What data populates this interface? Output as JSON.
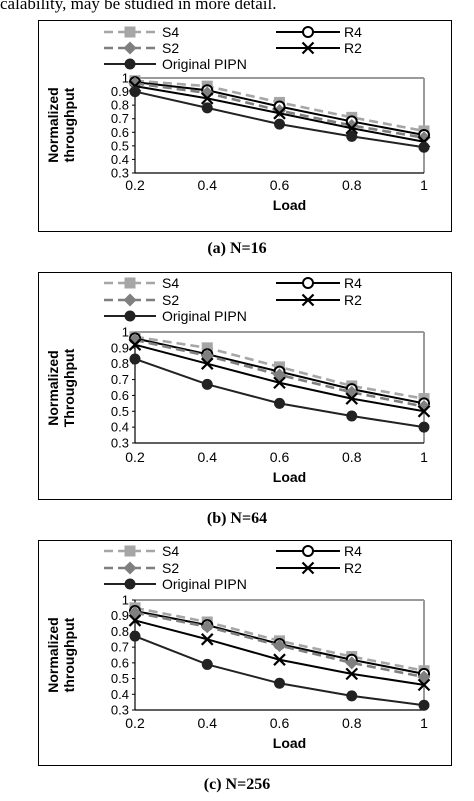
{
  "page": {
    "top_text": "calability, may be studied in more detail."
  },
  "chart_data": [
    {
      "type": "line",
      "caption": "(a) N=16",
      "title": "",
      "xlabel": "Load",
      "ylabel": "Normalized throughput",
      "x": [
        0.2,
        0.4,
        0.6,
        0.8,
        1
      ],
      "x_ticks": [
        "0.2",
        "0.4",
        "0.6",
        "0.8",
        "1"
      ],
      "ylim": [
        0.3,
        1
      ],
      "y_ticks": [
        "1",
        "0.9",
        "0.8",
        "0.7",
        "0.6",
        "0.5",
        "0.4",
        "0.3"
      ],
      "grid": false,
      "legend_position": "top",
      "series": [
        {
          "name": "S4",
          "marker": "square",
          "dashed": true,
          "color": "#a6a6a6",
          "values": [
            0.98,
            0.94,
            0.82,
            0.71,
            0.61
          ]
        },
        {
          "name": "R4",
          "marker": "circle-open",
          "dashed": false,
          "color": "#000000",
          "values": [
            0.97,
            0.91,
            0.79,
            0.68,
            0.58
          ]
        },
        {
          "name": "S2",
          "marker": "diamond",
          "dashed": true,
          "color": "#7f7f7f",
          "values": [
            0.96,
            0.89,
            0.76,
            0.65,
            0.56
          ]
        },
        {
          "name": "R2",
          "marker": "x",
          "dashed": false,
          "color": "#000000",
          "values": [
            0.94,
            0.85,
            0.74,
            0.63,
            0.53
          ]
        },
        {
          "name": "Original PIPN",
          "marker": "circle-filled",
          "dashed": false,
          "color": "#222222",
          "values": [
            0.9,
            0.78,
            0.66,
            0.57,
            0.49
          ]
        }
      ]
    },
    {
      "type": "line",
      "caption": "(b) N=64",
      "title": "",
      "xlabel": "Load",
      "ylabel": "Normalized Throughput",
      "x": [
        0.2,
        0.4,
        0.6,
        0.8,
        1
      ],
      "x_ticks": [
        "0.2",
        "0.4",
        "0.6",
        "0.8",
        "1"
      ],
      "ylim": [
        0.3,
        1
      ],
      "y_ticks": [
        "1",
        "0.9",
        "0.8",
        "0.7",
        "0.6",
        "0.5",
        "0.4",
        "0.3"
      ],
      "grid": false,
      "legend_position": "top",
      "series": [
        {
          "name": "S4",
          "marker": "square",
          "dashed": true,
          "color": "#a6a6a6",
          "values": [
            0.97,
            0.9,
            0.78,
            0.66,
            0.58
          ]
        },
        {
          "name": "R4",
          "marker": "circle-open",
          "dashed": false,
          "color": "#000000",
          "values": [
            0.96,
            0.86,
            0.75,
            0.64,
            0.55
          ]
        },
        {
          "name": "S2",
          "marker": "diamond",
          "dashed": true,
          "color": "#7f7f7f",
          "values": [
            0.95,
            0.85,
            0.73,
            0.62,
            0.53
          ]
        },
        {
          "name": "R2",
          "marker": "x",
          "dashed": false,
          "color": "#000000",
          "values": [
            0.92,
            0.8,
            0.68,
            0.58,
            0.5
          ]
        },
        {
          "name": "Original PIPN",
          "marker": "circle-filled",
          "dashed": false,
          "color": "#222222",
          "values": [
            0.83,
            0.67,
            0.55,
            0.47,
            0.4
          ]
        }
      ]
    },
    {
      "type": "line",
      "caption": "(c) N=256",
      "title": "",
      "xlabel": "Load",
      "ylabel": "Normalized throughput",
      "x": [
        0.2,
        0.4,
        0.6,
        0.8,
        1
      ],
      "x_ticks": [
        "0.2",
        "0.4",
        "0.6",
        "0.8",
        "1"
      ],
      "ylim": [
        0.3,
        1
      ],
      "y_ticks": [
        "1",
        "0.9",
        "0.8",
        "0.7",
        "0.6",
        "0.5",
        "0.4",
        "0.3"
      ],
      "grid": false,
      "legend_position": "top",
      "series": [
        {
          "name": "S4",
          "marker": "square",
          "dashed": true,
          "color": "#a6a6a6",
          "values": [
            0.95,
            0.86,
            0.74,
            0.64,
            0.55
          ]
        },
        {
          "name": "R4",
          "marker": "circle-open",
          "dashed": false,
          "color": "#000000",
          "values": [
            0.93,
            0.84,
            0.72,
            0.62,
            0.53
          ]
        },
        {
          "name": "S2",
          "marker": "diamond",
          "dashed": true,
          "color": "#7f7f7f",
          "values": [
            0.92,
            0.83,
            0.71,
            0.6,
            0.51
          ]
        },
        {
          "name": "R2",
          "marker": "x",
          "dashed": false,
          "color": "#000000",
          "values": [
            0.87,
            0.75,
            0.62,
            0.53,
            0.46
          ]
        },
        {
          "name": "Original PIPN",
          "marker": "circle-filled",
          "dashed": false,
          "color": "#222222",
          "values": [
            0.77,
            0.59,
            0.47,
            0.39,
            0.33
          ]
        }
      ]
    }
  ]
}
